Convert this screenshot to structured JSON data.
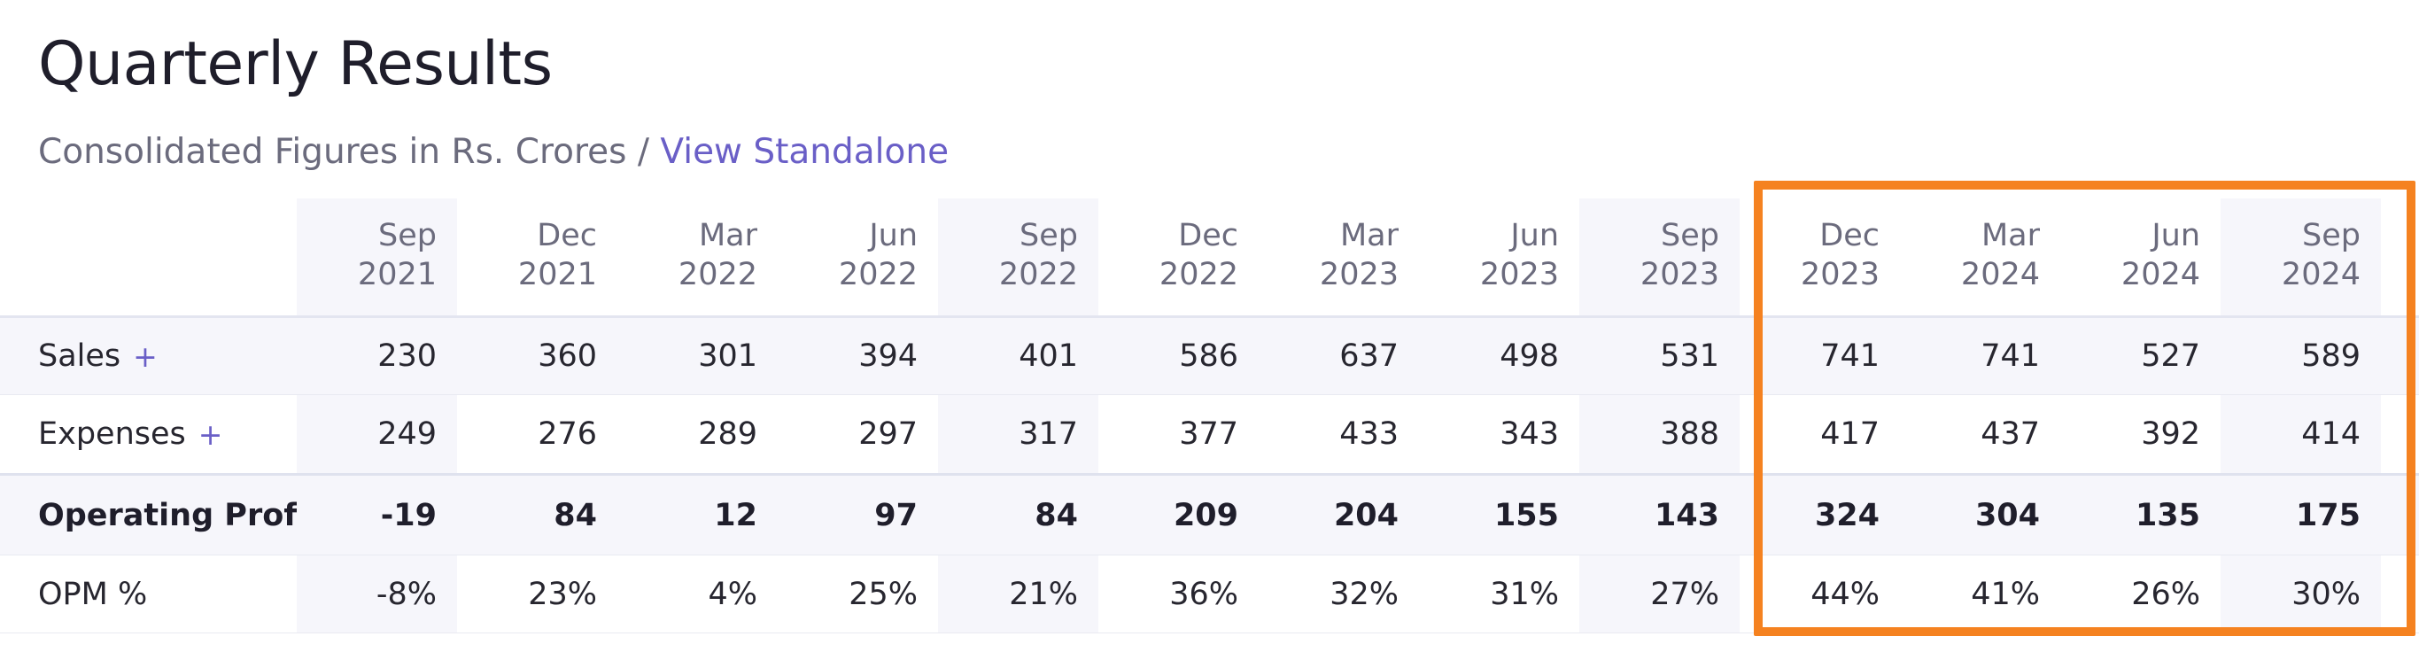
{
  "title": "Quarterly Results",
  "subtitle": {
    "prefix": "Consolidated Figures in Rs. Crores / ",
    "link": "View Standalone"
  },
  "columns": [
    {
      "month": "Sep",
      "year": "2021"
    },
    {
      "month": "Dec",
      "year": "2021"
    },
    {
      "month": "Mar",
      "year": "2022"
    },
    {
      "month": "Jun",
      "year": "2022"
    },
    {
      "month": "Sep",
      "year": "2022"
    },
    {
      "month": "Dec",
      "year": "2022"
    },
    {
      "month": "Mar",
      "year": "2023"
    },
    {
      "month": "Jun",
      "year": "2023"
    },
    {
      "month": "Sep",
      "year": "2023"
    },
    {
      "month": "Dec",
      "year": "2023"
    },
    {
      "month": "Mar",
      "year": "2024"
    },
    {
      "month": "Jun",
      "year": "2024"
    },
    {
      "month": "Sep",
      "year": "2024"
    }
  ],
  "rows": [
    {
      "label": "Sales",
      "expand": "+",
      "values": [
        "230",
        "360",
        "301",
        "394",
        "401",
        "586",
        "637",
        "498",
        "531",
        "741",
        "741",
        "527",
        "589"
      ]
    },
    {
      "label": "Expenses",
      "expand": "+",
      "values": [
        "249",
        "276",
        "289",
        "297",
        "317",
        "377",
        "433",
        "343",
        "388",
        "417",
        "437",
        "392",
        "414"
      ]
    },
    {
      "label": "Operating Profit",
      "expand": "",
      "values": [
        "-19",
        "84",
        "12",
        "97",
        "84",
        "209",
        "204",
        "155",
        "143",
        "324",
        "304",
        "135",
        "175"
      ]
    },
    {
      "label": "OPM %",
      "expand": "",
      "values": [
        "-8%",
        "23%",
        "4%",
        "25%",
        "21%",
        "36%",
        "32%",
        "31%",
        "27%",
        "44%",
        "41%",
        "26%",
        "30%"
      ]
    }
  ],
  "colors": {
    "highlight": "#f58220",
    "link": "#6a5fc7",
    "shade": "#f6f6fb"
  }
}
